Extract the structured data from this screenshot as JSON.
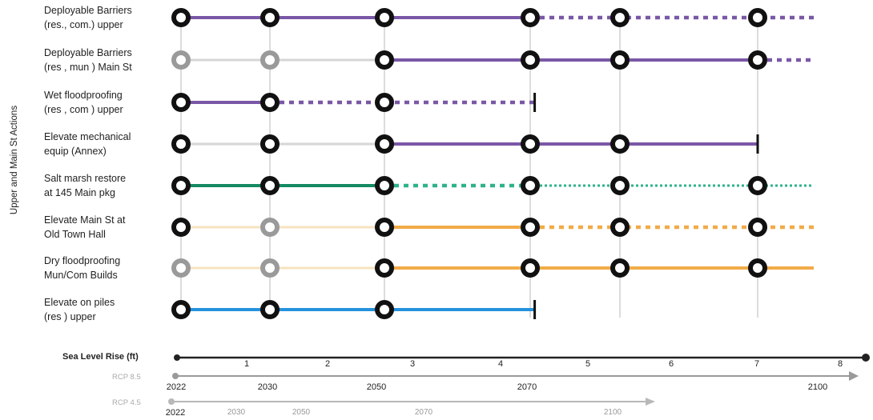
{
  "y_axis_title": "Upper and Main St Actions",
  "colors": {
    "purple": "#7a57a6",
    "gray_line": "#d6d6d6",
    "green": "#148a62",
    "green_dot": "#2fb28b",
    "orange": "#f1ab48",
    "orange_faint": "#f7e3c0",
    "blue": "#2592dd",
    "node_dark": "#111111",
    "node_gray": "#9a9a9a"
  },
  "rows": [
    {
      "label": "Deployable Barriers\n(res., com.) upper",
      "color": "purple",
      "segments": [
        [
          "solid",
          0,
          3
        ],
        [
          "dotted",
          3,
          6
        ]
      ],
      "nodes": [
        [
          "dark",
          0
        ],
        [
          "dark",
          1
        ],
        [
          "dark",
          2
        ],
        [
          "dark",
          3
        ],
        [
          "dark",
          4
        ],
        [
          "dark",
          5
        ]
      ]
    },
    {
      "label": "Deployable Barriers\n(res , mun ) Main St",
      "color": "purple",
      "segments": [
        [
          "gray",
          0,
          2
        ],
        [
          "solid",
          2,
          5
        ],
        [
          "dotted",
          5,
          6
        ]
      ],
      "nodes": [
        [
          "gray",
          0
        ],
        [
          "gray",
          1
        ],
        [
          "dark",
          2
        ],
        [
          "dark",
          3
        ],
        [
          "dark",
          4
        ],
        [
          "dark",
          5
        ]
      ]
    },
    {
      "label": "Wet floodproofing\n(res , com ) upper",
      "color": "purple",
      "segments": [
        [
          "solid",
          0,
          1
        ],
        [
          "dotted",
          1,
          3.05
        ]
      ],
      "nodes": [
        [
          "dark",
          0
        ],
        [
          "dark",
          1
        ],
        [
          "dark",
          2
        ]
      ],
      "end_bar": 3.05
    },
    {
      "label": "Elevate mechanical\nequip (Annex)",
      "color": "purple",
      "segments": [
        [
          "gray",
          0,
          2
        ],
        [
          "solid",
          2,
          5
        ]
      ],
      "nodes": [
        [
          "dark",
          0
        ],
        [
          "dark",
          1
        ],
        [
          "dark",
          2
        ],
        [
          "dark",
          3
        ],
        [
          "dark",
          4
        ]
      ],
      "end_bar": 5
    },
    {
      "label": "Salt marsh restore\nat 145 Main pkg",
      "color": "green",
      "segments": [
        [
          "solid",
          0,
          2
        ],
        [
          "dotted",
          2,
          3
        ],
        [
          "fine",
          3,
          6
        ]
      ],
      "nodes": [
        [
          "dark",
          0
        ],
        [
          "dark",
          1
        ],
        [
          "dark",
          2
        ],
        [
          "dark",
          3
        ],
        [
          "dark",
          4
        ],
        [
          "dark",
          5
        ]
      ]
    },
    {
      "label": "Elevate Main St  at\nOld Town Hall",
      "color": "orange",
      "segments": [
        [
          "faint",
          0,
          2
        ],
        [
          "solid",
          2,
          3
        ],
        [
          "dotted",
          3,
          6
        ]
      ],
      "nodes": [
        [
          "dark",
          0
        ],
        [
          "gray",
          1
        ],
        [
          "dark",
          2
        ],
        [
          "dark",
          3
        ],
        [
          "dark",
          4
        ],
        [
          "dark",
          5
        ]
      ]
    },
    {
      "label": "Dry floodproofing\nMun/Com Builds",
      "color": "orange",
      "segments": [
        [
          "faint",
          0,
          2
        ],
        [
          "solid",
          2,
          6
        ]
      ],
      "nodes": [
        [
          "gray",
          0
        ],
        [
          "gray",
          1
        ],
        [
          "dark",
          2
        ],
        [
          "dark",
          3
        ],
        [
          "dark",
          4
        ],
        [
          "dark",
          5
        ]
      ]
    },
    {
      "label": "Elevate on piles\n(res ) upper",
      "color": "blue",
      "segments": [
        [
          "solid",
          0,
          3.05
        ]
      ],
      "nodes": [
        [
          "dark",
          0
        ],
        [
          "dark",
          1
        ],
        [
          "dark",
          2
        ]
      ],
      "end_bar": 3.05
    }
  ],
  "sea_level": {
    "title": "Sea Level Rise (ft)",
    "ticks": [
      "1",
      "2",
      "3",
      "4",
      "5",
      "6",
      "7",
      "8"
    ]
  },
  "rcp85": {
    "label": "RCP 8.5",
    "years": [
      "2022",
      "2030",
      "2050",
      "2070",
      "2100"
    ]
  },
  "rcp45": {
    "label": "RCP 4.5",
    "years": [
      "2022",
      "2030",
      "2050",
      "2070",
      "2100"
    ]
  }
}
